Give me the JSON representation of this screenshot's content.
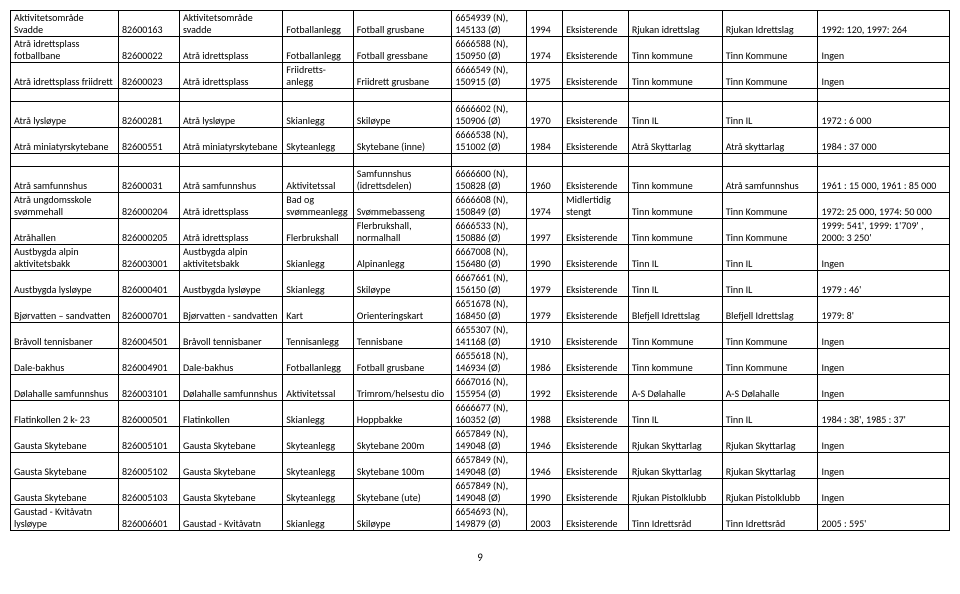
{
  "colWidths": [
    "11.5%",
    "6.5%",
    "11%",
    "7.5%",
    "10.5%",
    "8%",
    "3.8%",
    "7%",
    "10%",
    "10.2%",
    "14%"
  ],
  "rows": [
    [
      [
        "Aktivitetsområde Svadde"
      ],
      [
        "82600163"
      ],
      [
        "Aktivitetsområde svadde"
      ],
      [
        "Fotballanlegg"
      ],
      [
        "Fotball grusbane"
      ],
      [
        "6654939 (N), 145133 (Ø)"
      ],
      [
        "1994"
      ],
      [
        "Eksisterende"
      ],
      [
        "Rjukan idrettslag"
      ],
      [
        "Rjukan Idrettslag"
      ],
      [
        "1992: 120, 1997: 264"
      ]
    ],
    [
      [
        "Atrå idrettsplass fotballbane"
      ],
      [
        "82600022"
      ],
      [
        "Atrå idrettsplass"
      ],
      [
        "Fotballanlegg"
      ],
      [
        "Fotball gressbane"
      ],
      [
        "6666588 (N), 150950 (Ø)"
      ],
      [
        "1974"
      ],
      [
        "Eksisterende"
      ],
      [
        "Tinn kommune"
      ],
      [
        "Tinn Kommune"
      ],
      [
        "Ingen"
      ]
    ],
    [
      [
        "Atrå idrettsplass friidrett"
      ],
      [
        "82600023"
      ],
      [
        "Atrå idrettsplass"
      ],
      [
        "Friidretts-anlegg"
      ],
      [
        "Friidrett grusbane"
      ],
      [
        "6666549 (N), 150915 (Ø)"
      ],
      [
        "1975"
      ],
      [
        "Eksisterende"
      ],
      [
        "Tinn kommune"
      ],
      [
        "Tinn Kommune"
      ],
      [
        "Ingen"
      ]
    ],
    "gap",
    [
      [
        "Atrå lysløype"
      ],
      [
        "82600281"
      ],
      [
        "Atrå lysløype"
      ],
      [
        "Skianlegg"
      ],
      [
        "Skiløype"
      ],
      [
        "6666602 (N), 150906 (Ø)"
      ],
      [
        "1970"
      ],
      [
        "Eksisterende"
      ],
      [
        "Tinn IL"
      ],
      [
        "Tinn IL"
      ],
      [
        "1972 : 6 000"
      ]
    ],
    [
      [
        "Atrå miniatyrskytebane"
      ],
      [
        "82600551"
      ],
      [
        "Atrå miniatyrskytebane"
      ],
      [
        "Skyteanlegg"
      ],
      [
        "Skytebane (inne)"
      ],
      [
        "6666538 (N), 151002 (Ø)"
      ],
      [
        "1984"
      ],
      [
        "Eksisterende"
      ],
      [
        "Atrå Skyttarlag"
      ],
      [
        "Atrå skyttarlag"
      ],
      [
        "1984 : 37 000"
      ]
    ],
    "gap",
    [
      [
        "Atrå samfunnshus"
      ],
      [
        "82600031"
      ],
      [
        "Atrå samfunnshus"
      ],
      [
        "Aktivitetssal"
      ],
      [
        "Samfunnshus (idrettsdelen)"
      ],
      [
        "6666600 (N), 150828 (Ø)"
      ],
      [
        "1960"
      ],
      [
        "Eksisterende"
      ],
      [
        "Tinn kommune"
      ],
      [
        "Atrå samfunnshus"
      ],
      [
        "1961 : 15 000, 1961 : 85 000"
      ]
    ],
    [
      [
        "Atrå ungdomsskole svømmehall"
      ],
      [
        "826000204"
      ],
      [
        "Atrå idrettsplass"
      ],
      [
        "Bad og svømmeanlegg"
      ],
      [
        "Svømmebasseng"
      ],
      [
        "6666608 (N), 150849 (Ø)"
      ],
      [
        "1974"
      ],
      [
        "Midlertidig stengt"
      ],
      [
        "Tinn kommune"
      ],
      [
        "Tinn Kommune"
      ],
      [
        "1972: 25 000, 1974: 50 000"
      ]
    ],
    [
      [
        "Atråhallen"
      ],
      [
        "826000205"
      ],
      [
        "Atrå idrettsplass"
      ],
      [
        "Flerbrukshall"
      ],
      [
        "Flerbrukshall, normalhall"
      ],
      [
        "6666533 (N), 150886 (Ø)"
      ],
      [
        "1997"
      ],
      [
        "Eksisterende"
      ],
      [
        "Tinn kommune"
      ],
      [
        "Tinn Kommune"
      ],
      [
        "1999: 541', 1999: 1'709' , 2000: 3 250'"
      ]
    ],
    [
      [
        "Austbygda alpin aktivitetsbakk"
      ],
      [
        "826003001"
      ],
      [
        "Austbygda alpin aktivitetsbakk"
      ],
      [
        "Skianlegg"
      ],
      [
        "Alpinanlegg"
      ],
      [
        "6667008 (N), 156480 (Ø)"
      ],
      [
        "1990"
      ],
      [
        "Eksisterende"
      ],
      [
        "Tinn IL"
      ],
      [
        "Tinn IL"
      ],
      [
        "Ingen"
      ]
    ],
    [
      [
        "Austbygda lysløype"
      ],
      [
        "826000401"
      ],
      [
        "Austbygda lysløype"
      ],
      [
        "Skianlegg"
      ],
      [
        "Skiløype"
      ],
      [
        "6667661 (N), 156150 (Ø)"
      ],
      [
        "1979"
      ],
      [
        "Eksisterende"
      ],
      [
        "Tinn IL"
      ],
      [
        "Tinn IL"
      ],
      [
        "1979 : 46'"
      ]
    ],
    [
      [
        "Bjørvatten – sandvatten"
      ],
      [
        "826000701"
      ],
      [
        "Bjørvatten - sandvatten"
      ],
      [
        "Kart"
      ],
      [
        "Orienteringskart"
      ],
      [
        "6651678 (N), 168450 (Ø)"
      ],
      [
        "1979"
      ],
      [
        "Eksisterende"
      ],
      [
        "Blefjell Idrettslag"
      ],
      [
        "Blefjell Idrettslag"
      ],
      [
        "1979: 8'"
      ]
    ],
    [
      [
        "Bråvoll tennisbaner"
      ],
      [
        "826004501"
      ],
      [
        "Bråvoll tennisbaner"
      ],
      [
        "Tennisanlegg"
      ],
      [
        "Tennisbane"
      ],
      [
        "6655307 (N), 141168 (Ø)"
      ],
      [
        "1910"
      ],
      [
        "Eksisterende"
      ],
      [
        "Tinn Kommune"
      ],
      [
        "Tinn Kommune"
      ],
      [
        "Ingen"
      ]
    ],
    [
      [
        "Dale-bakhus"
      ],
      [
        "826004901"
      ],
      [
        "Dale-bakhus"
      ],
      [
        "Fotballanlegg"
      ],
      [
        "Fotball grusbane"
      ],
      [
        "6655618 (N), 146934 (Ø)"
      ],
      [
        "1986"
      ],
      [
        "Eksisterende"
      ],
      [
        "Tinn kommune"
      ],
      [
        "Tinn Kommune"
      ],
      [
        "Ingen"
      ]
    ],
    [
      [
        "Dølahalle samfunnshus"
      ],
      [
        "826003101"
      ],
      [
        "Dølahalle samfunnshus"
      ],
      [
        "Aktivitetssal"
      ],
      [
        "Trimrom/helsestu dio"
      ],
      [
        "6667016 (N), 155954 (Ø)"
      ],
      [
        "1992"
      ],
      [
        "Eksisterende"
      ],
      [
        "A-S Dølahalle"
      ],
      [
        "A-S Dølahalle"
      ],
      [
        "Ingen"
      ]
    ],
    [
      [
        "Flatinkollen 2 k- 23"
      ],
      [
        "826000501"
      ],
      [
        "Flatinkollen"
      ],
      [
        "Skianlegg"
      ],
      [
        "Hoppbakke"
      ],
      [
        "6666677 (N), 160352 (Ø)"
      ],
      [
        "1988"
      ],
      [
        "Eksisterende"
      ],
      [
        "Tinn IL"
      ],
      [
        "Tinn IL"
      ],
      [
        "1984 : 38', 1985 : 37'"
      ]
    ],
    [
      [
        "Gausta Skytebane"
      ],
      [
        "826005101"
      ],
      [
        "Gausta Skytebane"
      ],
      [
        "Skyteanlegg"
      ],
      [
        "Skytebane 200m"
      ],
      [
        "6657849 (N), 149048 (Ø)"
      ],
      [
        "1946"
      ],
      [
        "Eksisterende"
      ],
      [
        "Rjukan Skyttarlag"
      ],
      [
        "Rjukan Skyttarlag"
      ],
      [
        "Ingen"
      ]
    ],
    [
      [
        "Gausta Skytebane"
      ],
      [
        "826005102"
      ],
      [
        "Gausta Skytebane"
      ],
      [
        "Skyteanlegg"
      ],
      [
        "Skytebane 100m"
      ],
      [
        "6657849 (N), 149048 (Ø)"
      ],
      [
        "1946"
      ],
      [
        "Eksisterende"
      ],
      [
        "Rjukan Skyttarlag"
      ],
      [
        "Rjukan Skyttarlag"
      ],
      [
        "Ingen"
      ]
    ],
    [
      [
        "Gausta Skytebane"
      ],
      [
        "826005103"
      ],
      [
        "Gausta Skytebane"
      ],
      [
        "Skyteanlegg"
      ],
      [
        "Skytebane (ute)"
      ],
      [
        "6657849 (N), 149048 (Ø)"
      ],
      [
        "1990"
      ],
      [
        "Eksisterende"
      ],
      [
        "Rjukan Pistolklubb"
      ],
      [
        "Rjukan Pistolklubb"
      ],
      [
        "Ingen"
      ]
    ],
    [
      [
        "Gaustad - Kvitåvatn lysløype"
      ],
      [
        "826006601"
      ],
      [
        "Gaustad - Kvitåvatn"
      ],
      [
        "Skianlegg"
      ],
      [
        "Skiløype"
      ],
      [
        "6654693 (N), 149879 (Ø)"
      ],
      [
        "2003"
      ],
      [
        "Eksisterende"
      ],
      [
        "Tinn Idrettsråd"
      ],
      [
        "Tinn Idrettsråd"
      ],
      [
        "2005 : 595'"
      ]
    ]
  ],
  "pageNumber": "9"
}
